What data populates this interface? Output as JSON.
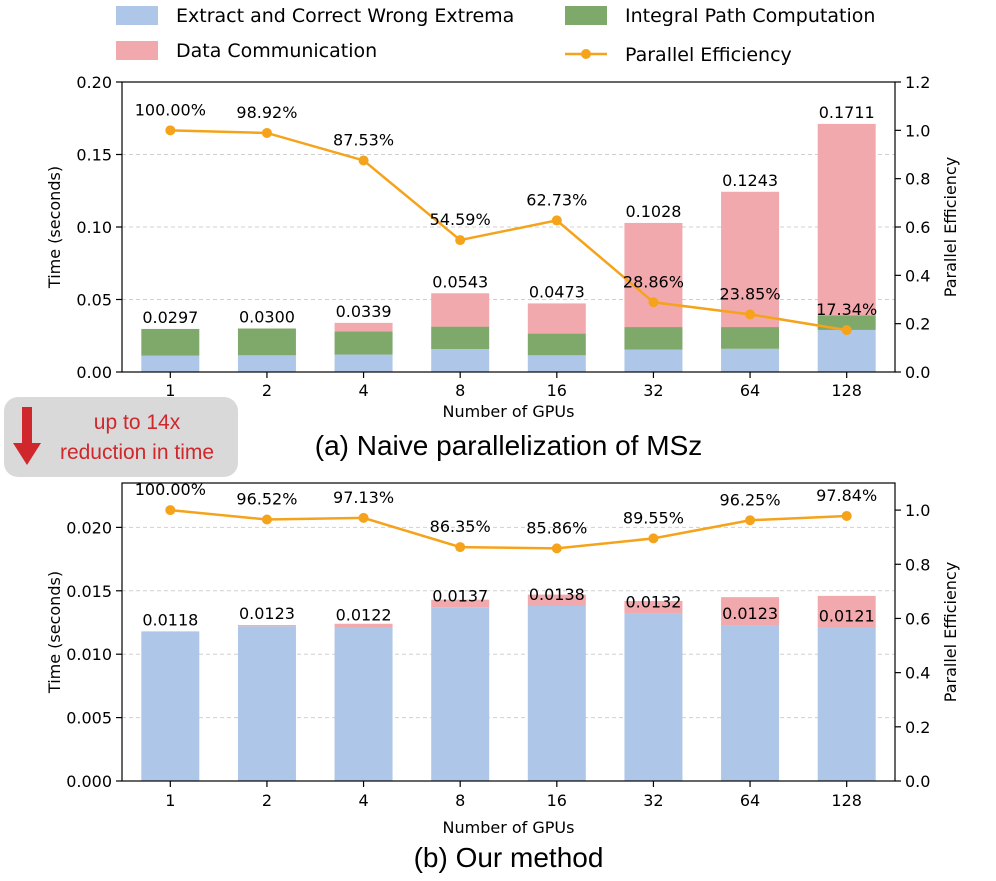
{
  "legend": {
    "items": [
      {
        "label": "Extract and Correct Wrong Extrema",
        "color": "#aec7e8",
        "kind": "bar"
      },
      {
        "label": "Integral Path Computation",
        "color": "#7fa86b",
        "kind": "bar"
      },
      {
        "label": "Data Communication",
        "color": "#f2a9ad",
        "kind": "bar"
      },
      {
        "label": "Parallel Efficiency",
        "color": "#f5a31a",
        "kind": "line"
      }
    ]
  },
  "badge": {
    "line1": "up to 14x",
    "line2": "reduction in time",
    "arrow_color": "#d0272c"
  },
  "chart_data": [
    {
      "type": "bar",
      "caption": "(a) Naive parallelization of MSz",
      "xlabel": "Number of GPUs",
      "ylabel": "Time (seconds)",
      "y2label": "Parallel Efficiency",
      "categories": [
        "1",
        "2",
        "4",
        "8",
        "16",
        "32",
        "64",
        "128"
      ],
      "ylim": [
        0,
        0.2
      ],
      "yticks": [
        "0.00",
        "0.05",
        "0.10",
        "0.15",
        "0.20"
      ],
      "y2lim": [
        0,
        1.2
      ],
      "y2ticks": [
        "0.0",
        "0.2",
        "0.4",
        "0.6",
        "0.8",
        "1.0",
        "1.2"
      ],
      "series": [
        {
          "name": "Extract and Correct Wrong Extrema",
          "values": [
            0.0113,
            0.0115,
            0.012,
            0.0158,
            0.0115,
            0.0155,
            0.016,
            0.029
          ]
        },
        {
          "name": "Integral Path Computation",
          "values": [
            0.0184,
            0.0185,
            0.016,
            0.0155,
            0.015,
            0.0155,
            0.015,
            0.01
          ]
        },
        {
          "name": "Data Communication",
          "values": [
            0.0,
            0.0,
            0.0059,
            0.023,
            0.0208,
            0.0718,
            0.0933,
            0.1321
          ]
        }
      ],
      "totals": [
        0.0297,
        0.03,
        0.0339,
        0.0543,
        0.0473,
        0.1028,
        0.1243,
        0.1711
      ],
      "total_labels": [
        "0.0297",
        "0.0300",
        "0.0339",
        "0.0543",
        "0.0473",
        "0.1028",
        "0.1243",
        "0.1711"
      ],
      "efficiency": [
        1.0,
        0.9892,
        0.8753,
        0.5459,
        0.6273,
        0.2886,
        0.2385,
        0.1734
      ],
      "efficiency_labels": [
        "100.00%",
        "98.92%",
        "87.53%",
        "54.59%",
        "62.73%",
        "28.86%",
        "23.85%",
        "17.34%"
      ]
    },
    {
      "type": "bar",
      "caption": "(b) Our method",
      "xlabel": "Number of GPUs",
      "ylabel": "Time (seconds)",
      "y2label": "Parallel Efficiency",
      "categories": [
        "1",
        "2",
        "4",
        "8",
        "16",
        "32",
        "64",
        "128"
      ],
      "ylim": [
        0,
        0.0235
      ],
      "yticks": [
        "0.000",
        "0.005",
        "0.010",
        "0.015",
        "0.020"
      ],
      "y2lim": [
        0,
        1.1
      ],
      "y2ticks": [
        "0.0",
        "0.2",
        "0.4",
        "0.6",
        "0.8",
        "1.0"
      ],
      "series": [
        {
          "name": "Extract and Correct Wrong Extrema",
          "values": [
            0.0118,
            0.0122,
            0.0121,
            0.0137,
            0.0138,
            0.0132,
            0.0123,
            0.0121
          ]
        },
        {
          "name": "Integral Path Computation",
          "values": [
            0,
            0,
            0,
            0,
            0,
            0,
            0,
            0
          ]
        },
        {
          "name": "Data Communication",
          "values": [
            0.0,
            0.0001,
            0.0003,
            0.0006,
            0.0009,
            0.001,
            0.0022,
            0.0025
          ]
        }
      ],
      "totals": [
        0.0118,
        0.0123,
        0.0122,
        0.0137,
        0.0138,
        0.0132,
        0.0123,
        0.0121
      ],
      "total_labels": [
        "0.0118",
        "0.0123",
        "0.0122",
        "0.0137",
        "0.0138",
        "0.0132",
        "0.0123",
        "0.0121"
      ],
      "efficiency": [
        1.0,
        0.9652,
        0.9713,
        0.8635,
        0.8586,
        0.8955,
        0.9625,
        0.9784
      ],
      "efficiency_labels": [
        "100.00%",
        "96.52%",
        "97.13%",
        "86.35%",
        "85.86%",
        "89.55%",
        "96.25%",
        "97.84%"
      ]
    }
  ]
}
